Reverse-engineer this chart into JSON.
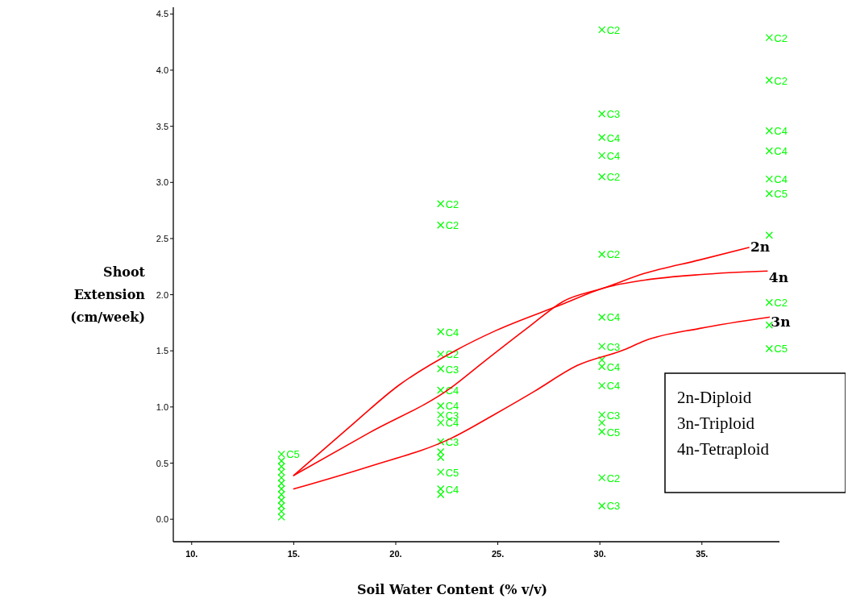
{
  "chart_data": {
    "type": "scatter",
    "xlabel": "Soil Water Content (% v/v)",
    "ylabel": "Shoot Extension (cm/week)",
    "xlim": [
      9.1,
      38.8
    ],
    "ylim": [
      -0.2,
      4.56
    ],
    "xticks": [
      {
        "value": 10,
        "label": "10."
      },
      {
        "value": 15,
        "label": "15."
      },
      {
        "value": 20,
        "label": "20."
      },
      {
        "value": 25,
        "label": "25."
      },
      {
        "value": 30,
        "label": "30."
      },
      {
        "value": 35,
        "label": "35."
      }
    ],
    "yticks": [
      {
        "value": 0,
        "label": "0.0"
      },
      {
        "value": 0.5,
        "label": "0.5"
      },
      {
        "value": 1,
        "label": "1.0"
      },
      {
        "value": 1.5,
        "label": "1.5"
      },
      {
        "value": 2,
        "label": "2.0"
      },
      {
        "value": 2.5,
        "label": "2.5"
      },
      {
        "value": 3,
        "label": "3.0"
      },
      {
        "value": 3.5,
        "label": "3.5"
      },
      {
        "value": 4,
        "label": "4.0"
      },
      {
        "value": 4.5,
        "label": "4.5"
      }
    ],
    "grid": false,
    "annotations": [
      "2n-Diploid",
      "3n-Triploid",
      "4n-Tetraploid"
    ],
    "series": [
      {
        "color": "#00ff00",
        "marker": "cross",
        "x": [
          14.4,
          14.4,
          14.4,
          14.4,
          14.4,
          14.4,
          14.4,
          14.4,
          14.4,
          14.4,
          14.4,
          14.4,
          22.2,
          22.2,
          22.2,
          22.2,
          22.2,
          22.2,
          22.2,
          22.2,
          22.2,
          22.2,
          22.2,
          22.2,
          22.2,
          22.2,
          22.2,
          30.1,
          30.1,
          30.1,
          30.1,
          30.1,
          30.1,
          30.1,
          30.1,
          30.1,
          30.1,
          30.1,
          30.1,
          30.1,
          30.1,
          30.1,
          30.1,
          38.3,
          38.3,
          38.3,
          38.3,
          38.3,
          38.3,
          38.3,
          38.3,
          38.3,
          38.3
        ],
        "values": [
          0.58,
          0.52,
          0.47,
          0.42,
          0.37,
          0.32,
          0.27,
          0.22,
          0.17,
          0.12,
          0.07,
          0.02,
          2.81,
          2.62,
          1.67,
          1.47,
          1.34,
          1.15,
          1.01,
          0.93,
          0.86,
          0.69,
          0.6,
          0.55,
          0.42,
          0.27,
          0.22,
          4.36,
          3.61,
          3.4,
          3.24,
          3.05,
          2.36,
          1.8,
          1.54,
          1.42,
          1.36,
          1.19,
          0.93,
          0.86,
          0.78,
          0.37,
          0.12,
          4.29,
          3.91,
          3.46,
          3.28,
          3.03,
          2.9,
          2.53,
          1.93,
          1.73,
          1.52
        ],
        "value_labels": [
          "C5",
          null,
          null,
          null,
          null,
          null,
          null,
          null,
          null,
          null,
          null,
          null,
          "C2",
          "C2",
          "C4",
          "C2",
          "C3",
          "C4",
          "C4",
          "C3",
          "C4",
          "C3",
          null,
          null,
          "C5",
          "C4",
          null,
          "C2",
          "C3",
          "C4",
          "C4",
          "C2",
          "C2",
          "C4",
          "C3",
          null,
          "C4",
          "C4",
          "C3",
          null,
          "C5",
          "C2",
          "C3",
          "C2",
          "C2",
          "C4",
          "C4",
          "C4",
          "C5",
          null,
          "C2",
          null,
          "C5"
        ]
      },
      {
        "type": "line",
        "name": "2n",
        "color": "#ff0000",
        "x": [
          15.0,
          18.7,
          22.7,
          24.3,
          26.5,
          28.2,
          30.2,
          32.2,
          34.9,
          37.3
        ],
        "values": [
          0.39,
          0.77,
          1.17,
          1.4,
          1.71,
          1.94,
          2.06,
          2.19,
          2.31,
          2.42
        ]
      },
      {
        "type": "line",
        "name": "4n",
        "color": "#ff0000",
        "x": [
          15.0,
          17.6,
          20.2,
          22.9,
          24.9,
          28.1,
          30.2,
          32.2,
          35.0,
          38.2
        ],
        "values": [
          0.39,
          0.8,
          1.2,
          1.5,
          1.68,
          1.91,
          2.06,
          2.13,
          2.18,
          2.21
        ]
      },
      {
        "type": "line",
        "name": "3n",
        "color": "#ff0000",
        "x": [
          15.0,
          18.7,
          22.7,
          24.9,
          26.8,
          28.9,
          31.2,
          32.2,
          34.9,
          38.3
        ],
        "values": [
          0.27,
          0.47,
          0.72,
          0.94,
          1.14,
          1.37,
          1.51,
          1.59,
          1.7,
          1.8
        ]
      }
    ]
  }
}
